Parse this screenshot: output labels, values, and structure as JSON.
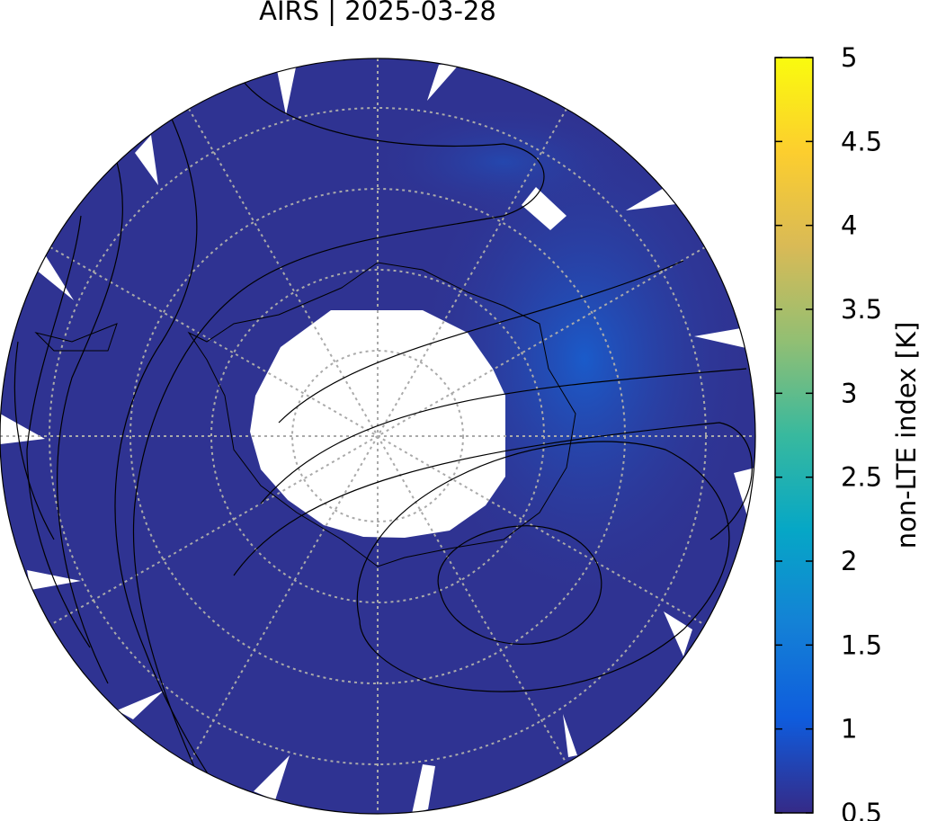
{
  "title": "AIRS | 2025-03-28",
  "colorbar": {
    "label": "non-LTE index [K]",
    "range": [
      0.5,
      5
    ],
    "ticks": [
      0.5,
      1,
      1.5,
      2,
      2.5,
      3,
      3.5,
      4,
      4.5,
      5
    ],
    "colormap": [
      "#352a87",
      "#0f5cdd",
      "#1481d6",
      "#06a7c6",
      "#38b99e",
      "#92bf73",
      "#d9ba56",
      "#fcce2e",
      "#f9fb0e"
    ]
  }
}
